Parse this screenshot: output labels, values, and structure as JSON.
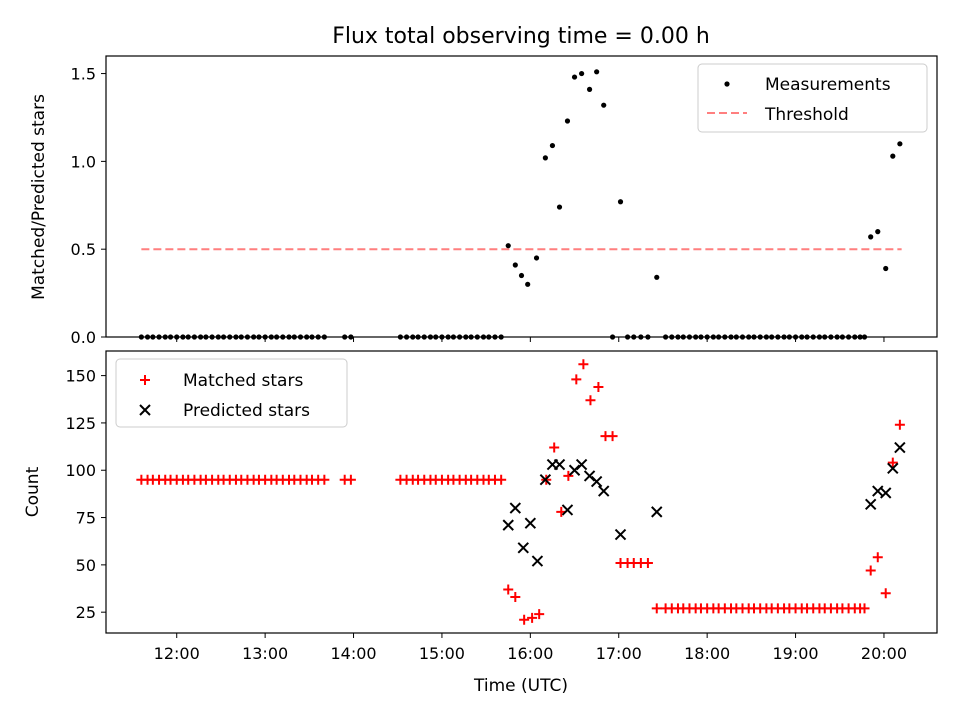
{
  "chart_data": [
    {
      "type": "scatter",
      "title": "Flux total observing time = 0.00 h",
      "ylabel": "Matched/Predicted stars",
      "xlabel": "",
      "xlim": [
        11.2,
        20.6
      ],
      "ylim": [
        0,
        1.6
      ],
      "y_ticks": [
        "0.0",
        "0.5",
        "1.0",
        "1.5"
      ],
      "legend_position": "top-right",
      "series": [
        {
          "name": "Measurements",
          "color": "#000000",
          "marker": "dot",
          "x": [
            11.6,
            11.67,
            11.73,
            11.8,
            11.87,
            11.93,
            12.0,
            12.07,
            12.13,
            12.2,
            12.27,
            12.33,
            12.4,
            12.47,
            12.53,
            12.6,
            12.67,
            12.73,
            12.8,
            12.87,
            12.93,
            13.0,
            13.07,
            13.13,
            13.2,
            13.27,
            13.33,
            13.4,
            13.47,
            13.53,
            13.6,
            13.67,
            13.9,
            13.97,
            14.53,
            14.6,
            14.67,
            14.73,
            14.8,
            14.87,
            14.93,
            15.0,
            15.07,
            15.13,
            15.2,
            15.27,
            15.33,
            15.4,
            15.47,
            15.53,
            15.6,
            15.67,
            15.75,
            15.83,
            15.9,
            15.97,
            16.07,
            16.17,
            16.25,
            16.33,
            16.42,
            16.5,
            16.58,
            16.67,
            16.75,
            16.83,
            16.93,
            17.02,
            17.1,
            17.17,
            17.25,
            17.33,
            17.43,
            17.53,
            17.6,
            17.67,
            17.73,
            17.8,
            17.87,
            17.93,
            18.0,
            18.07,
            18.13,
            18.2,
            18.27,
            18.33,
            18.4,
            18.47,
            18.53,
            18.6,
            18.67,
            18.73,
            18.8,
            18.87,
            18.93,
            19.0,
            19.07,
            19.13,
            19.2,
            19.27,
            19.33,
            19.4,
            19.47,
            19.53,
            19.6,
            19.67,
            19.73,
            19.78,
            19.85,
            19.93,
            20.02,
            20.1,
            20.18
          ],
          "y": [
            0,
            0,
            0,
            0,
            0,
            0,
            0,
            0,
            0,
            0,
            0,
            0,
            0,
            0,
            0,
            0,
            0,
            0,
            0,
            0,
            0,
            0,
            0,
            0,
            0,
            0,
            0,
            0,
            0,
            0,
            0,
            0,
            0,
            0,
            0,
            0,
            0,
            0,
            0,
            0,
            0,
            0,
            0,
            0,
            0,
            0,
            0,
            0,
            0,
            0,
            0,
            0,
            0.52,
            0.41,
            0.35,
            0.3,
            0.45,
            1.02,
            1.09,
            0.74,
            1.23,
            1.48,
            1.5,
            1.41,
            1.51,
            1.32,
            0,
            0.77,
            0,
            0,
            0,
            0,
            0.34,
            0,
            0,
            0,
            0,
            0,
            0,
            0,
            0,
            0,
            0,
            0,
            0,
            0,
            0,
            0,
            0,
            0,
            0,
            0,
            0,
            0,
            0,
            0,
            0,
            0,
            0,
            0,
            0,
            0,
            0,
            0,
            0,
            0,
            0,
            0,
            0.57,
            0.6,
            0.39,
            1.03,
            1.1
          ]
        },
        {
          "name": "Threshold",
          "color": "#ff7f7f",
          "line_style": "dashed",
          "x": [
            11.6,
            20.2
          ],
          "y": [
            0.5,
            0.5
          ]
        }
      ]
    },
    {
      "type": "scatter",
      "title": "",
      "ylabel": "Count",
      "xlabel": "Time (UTC)",
      "xlim": [
        11.2,
        20.6
      ],
      "ylim": [
        14,
        163
      ],
      "y_ticks": [
        "25",
        "50",
        "75",
        "100",
        "125",
        "150"
      ],
      "x_ticks": [
        "12:00",
        "13:00",
        "14:00",
        "15:00",
        "16:00",
        "17:00",
        "18:00",
        "19:00",
        "20:00"
      ],
      "legend_position": "top-left",
      "series": [
        {
          "name": "Matched stars",
          "color": "#ff0000",
          "marker": "plus",
          "x": [
            11.6,
            11.67,
            11.73,
            11.8,
            11.87,
            11.93,
            12.0,
            12.07,
            12.13,
            12.2,
            12.27,
            12.33,
            12.4,
            12.47,
            12.53,
            12.6,
            12.67,
            12.73,
            12.8,
            12.87,
            12.93,
            13.0,
            13.07,
            13.13,
            13.2,
            13.27,
            13.33,
            13.4,
            13.47,
            13.53,
            13.6,
            13.67,
            13.9,
            13.97,
            14.53,
            14.6,
            14.67,
            14.73,
            14.8,
            14.87,
            14.93,
            15.0,
            15.07,
            15.13,
            15.2,
            15.27,
            15.33,
            15.4,
            15.47,
            15.53,
            15.6,
            15.67,
            15.75,
            15.83,
            15.93,
            16.02,
            16.1,
            16.18,
            16.27,
            16.35,
            16.43,
            16.52,
            16.6,
            16.68,
            16.77,
            16.85,
            16.93,
            17.02,
            17.1,
            17.17,
            17.25,
            17.33,
            17.43,
            17.53,
            17.6,
            17.67,
            17.73,
            17.8,
            17.87,
            17.93,
            18.0,
            18.07,
            18.13,
            18.2,
            18.27,
            18.33,
            18.4,
            18.47,
            18.53,
            18.6,
            18.67,
            18.73,
            18.8,
            18.87,
            18.93,
            19.0,
            19.07,
            19.13,
            19.2,
            19.27,
            19.33,
            19.4,
            19.47,
            19.53,
            19.6,
            19.67,
            19.73,
            19.78,
            19.85,
            19.93,
            20.02,
            20.1,
            20.18
          ],
          "y": [
            95,
            95,
            95,
            95,
            95,
            95,
            95,
            95,
            95,
            95,
            95,
            95,
            95,
            95,
            95,
            95,
            95,
            95,
            95,
            95,
            95,
            95,
            95,
            95,
            95,
            95,
            95,
            95,
            95,
            95,
            95,
            95,
            95,
            95,
            95,
            95,
            95,
            95,
            95,
            95,
            95,
            95,
            95,
            95,
            95,
            95,
            95,
            95,
            95,
            95,
            95,
            95,
            37,
            33,
            21,
            22,
            24,
            95,
            112,
            78,
            97,
            148,
            156,
            137,
            144,
            118,
            118,
            51,
            51,
            51,
            51,
            51,
            27,
            27,
            27,
            27,
            27,
            27,
            27,
            27,
            27,
            27,
            27,
            27,
            27,
            27,
            27,
            27,
            27,
            27,
            27,
            27,
            27,
            27,
            27,
            27,
            27,
            27,
            27,
            27,
            27,
            27,
            27,
            27,
            27,
            27,
            27,
            27,
            47,
            54,
            35,
            104,
            124
          ]
        },
        {
          "name": "Predicted stars",
          "color": "#000000",
          "marker": "x",
          "x": [
            15.75,
            15.83,
            15.92,
            16.0,
            16.08,
            16.17,
            16.25,
            16.33,
            16.42,
            16.5,
            16.58,
            16.67,
            16.75,
            16.83,
            17.02,
            17.43,
            19.85,
            19.93,
            20.02,
            20.1,
            20.18
          ],
          "y": [
            71,
            80,
            59,
            72,
            52,
            95,
            103,
            103,
            79,
            100,
            103,
            97,
            94,
            89,
            66,
            78,
            82,
            89,
            88,
            101,
            112
          ]
        }
      ]
    }
  ]
}
